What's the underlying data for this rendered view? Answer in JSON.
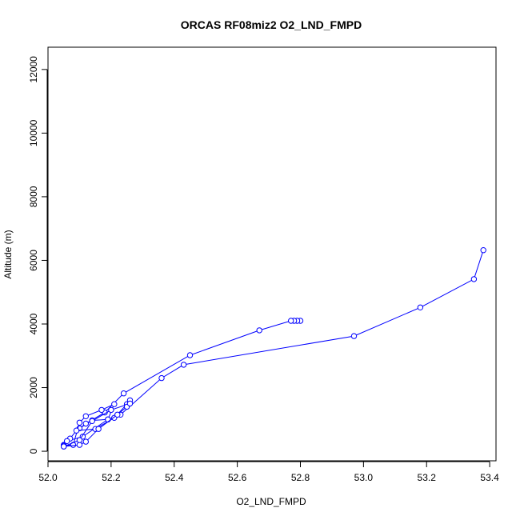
{
  "chart_data": {
    "type": "line",
    "title": "ORCAS RF08miz2 O2_LND_FMPD",
    "xlabel": "O2_LND_FMPD",
    "ylabel": "Altitude (m)",
    "xlim": [
      52.0,
      53.42
    ],
    "ylim": [
      -300,
      12700
    ],
    "x_ticks": [
      "52.0",
      "52.2",
      "52.4",
      "52.6",
      "52.8",
      "53.0",
      "53.2",
      "53.4"
    ],
    "y_ticks": [
      "0",
      "2000",
      "4000",
      "6000",
      "8000",
      "10000",
      "12000"
    ],
    "marker": "open-circle",
    "line_color": "#0000ff",
    "grid": false,
    "series": [
      {
        "x": [
          52.8,
          52.79,
          52.78,
          52.77,
          52.67,
          52.45,
          52.24,
          52.18,
          52.12,
          52.1,
          52.14,
          52.19,
          52.23,
          52.36,
          52.43,
          52.97,
          53.18,
          53.35,
          53.38
        ],
        "y": [
          4100,
          4100,
          4100,
          4100,
          3800,
          3020,
          1820,
          1220,
          870,
          720,
          970,
          1000,
          1150,
          2300,
          2720,
          3620,
          4520,
          5410,
          6320
        ]
      },
      {
        "x": [
          52.26,
          52.25,
          52.21,
          52.15,
          52.09,
          52.07,
          52.05,
          52.06,
          52.11,
          52.19,
          52.21,
          52.17,
          52.12,
          52.1,
          52.08,
          52.05
        ],
        "y": [
          1600,
          1480,
          1050,
          700,
          650,
          400,
          200,
          320,
          460,
          1000,
          1480,
          1300,
          1100,
          900,
          200,
          180
        ]
      },
      {
        "x": [
          52.05,
          52.1,
          52.12,
          52.16,
          52.22,
          52.25,
          52.26,
          52.2,
          52.14,
          52.1,
          52.05
        ],
        "y": [
          150,
          200,
          300,
          700,
          1150,
          1400,
          1500,
          1300,
          950,
          350,
          150
        ]
      }
    ]
  }
}
